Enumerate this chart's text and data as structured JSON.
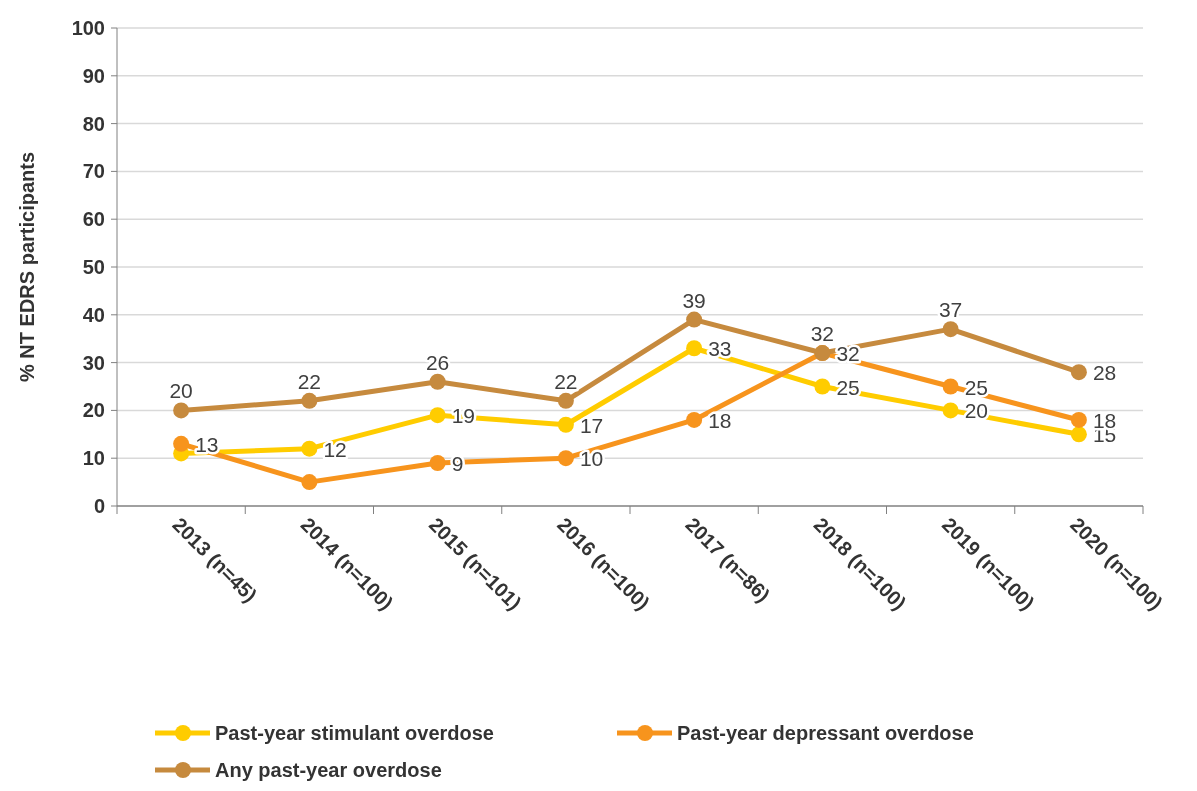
{
  "chart_data": {
    "type": "line",
    "ylabel": "% NT EDRS participants",
    "categories": [
      "2013 (n=45)",
      "2014 (n=100)",
      "2015 (n=101)",
      "2016 (n=100)",
      "2017 (n=86)",
      "2018 (n=100)",
      "2019 (n=100)",
      "2020 (n=100)"
    ],
    "ylim": [
      0,
      100
    ],
    "yticks": [
      0,
      10,
      20,
      30,
      40,
      50,
      60,
      70,
      80,
      90,
      100
    ],
    "grid": "y",
    "legend": "bottom",
    "marker": "circle",
    "line_style": "solid",
    "series": [
      {
        "name": "Past-year stimulant overdose",
        "color": "#ffcc00",
        "values": [
          11,
          12,
          19,
          17,
          33,
          25,
          20,
          15
        ],
        "value_labels": [
          null,
          "12",
          "19",
          "17",
          "33",
          "25",
          "20",
          "15"
        ]
      },
      {
        "name": "Past-year depressant overdose",
        "color": "#f7941d",
        "values": [
          13,
          5,
          9,
          10,
          18,
          32,
          25,
          18
        ],
        "value_labels": [
          "13",
          null,
          "9",
          "10",
          "18",
          "32",
          "25",
          "18"
        ]
      },
      {
        "name": "Any past-year overdose",
        "color": "#c68a3e",
        "values": [
          20,
          22,
          26,
          22,
          39,
          32,
          37,
          28
        ],
        "value_labels": [
          "20",
          "22",
          "26",
          "22",
          "39",
          "32",
          "37",
          "28"
        ]
      }
    ]
  }
}
